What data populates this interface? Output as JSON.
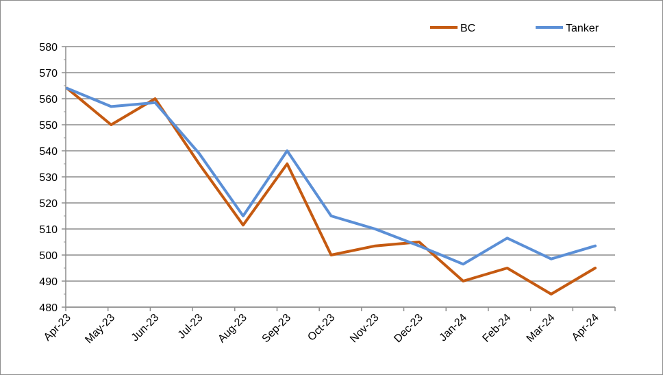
{
  "chart_data": {
    "type": "line",
    "title": "",
    "xlabel": "",
    "ylabel": "",
    "categories": [
      "Apr-23",
      "May-23",
      "Jun-23",
      "Jul-23",
      "Aug-23",
      "Sep-23",
      "Oct-23",
      "Nov-23",
      "Dec-23",
      "Jan-24",
      "Feb-24",
      "Mar-24",
      "Apr-24"
    ],
    "ylim": [
      480,
      580
    ],
    "yticks": [
      480,
      490,
      500,
      510,
      520,
      530,
      540,
      550,
      560,
      570,
      580
    ],
    "grid": true,
    "legend_position": "top-right",
    "series": [
      {
        "name": "BC",
        "color": "#c55a11",
        "values": [
          564,
          550,
          560,
          535,
          511.5,
          535,
          500,
          503.5,
          505,
          490,
          495,
          485,
          495
        ]
      },
      {
        "name": "Tanker",
        "color": "#5b8fd6",
        "values": [
          564,
          557,
          558.5,
          539,
          515,
          540,
          515,
          510,
          503.5,
          496.5,
          506.5,
          498.5,
          503.5
        ]
      }
    ]
  }
}
